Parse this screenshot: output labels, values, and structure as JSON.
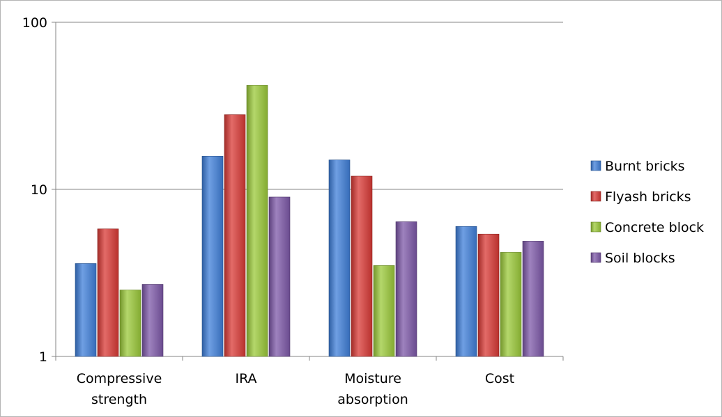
{
  "chart_data": {
    "type": "bar",
    "title": "",
    "xlabel": "",
    "ylabel": "",
    "yscale": "log",
    "ylim": [
      1,
      100
    ],
    "yticks": [
      1,
      10,
      100
    ],
    "ytick_labels": [
      "1",
      "10",
      "100"
    ],
    "grid": "horizontal major gridlines",
    "legend_position": "right",
    "categories": [
      [
        "Compressive",
        "strength"
      ],
      [
        "IRA"
      ],
      [
        "Moisture",
        "absorption"
      ],
      [
        "Cost"
      ]
    ],
    "series": [
      {
        "name": "Burnt bricks",
        "color": "#3f7fd9",
        "values": [
          3.6,
          15.8,
          15.0,
          6.0
        ]
      },
      {
        "name": "Flyash bricks",
        "color": "#d93a35",
        "values": [
          5.8,
          28.0,
          12.0,
          5.4
        ]
      },
      {
        "name": "Concrete block",
        "color": "#9bc93a",
        "values": [
          2.5,
          42.0,
          3.5,
          4.2
        ]
      },
      {
        "name": "Soil blocks",
        "color": "#7d58a8",
        "values": [
          2.7,
          9.0,
          6.4,
          4.9
        ]
      }
    ]
  }
}
